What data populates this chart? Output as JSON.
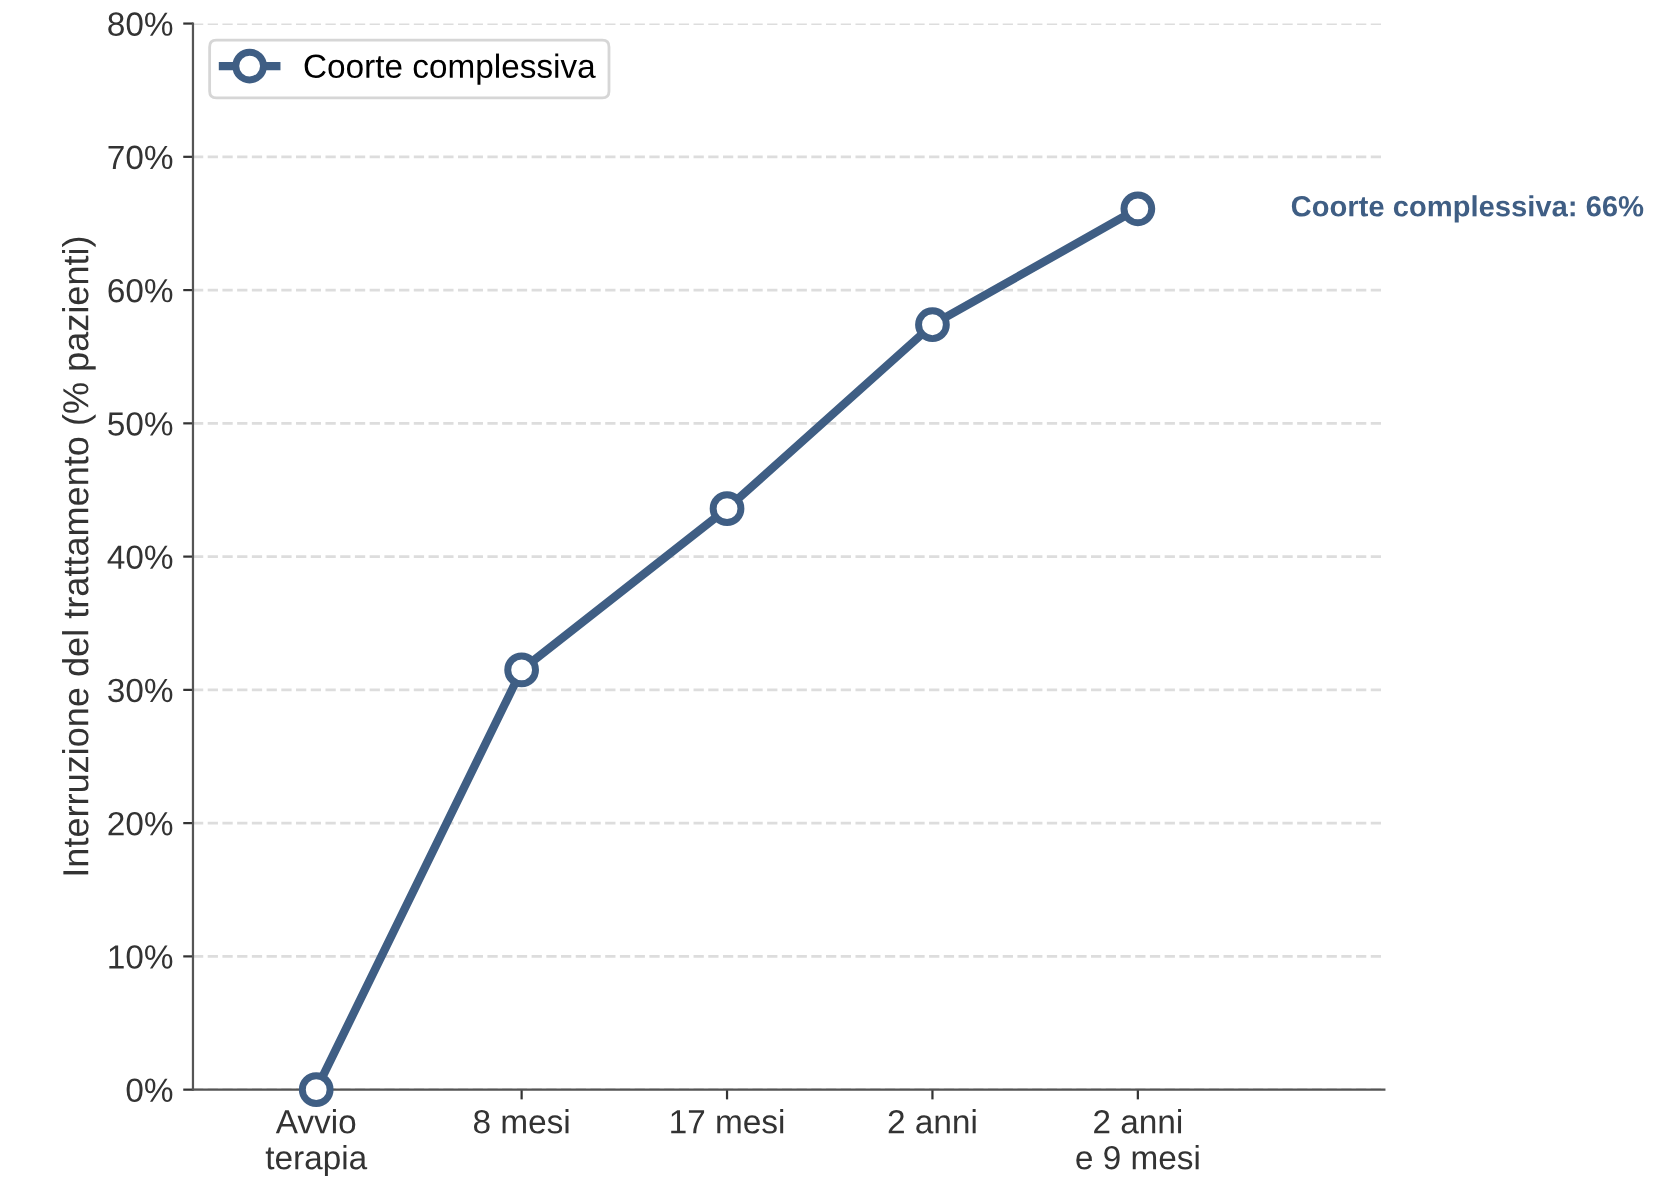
{
  "chart_data": {
    "type": "line",
    "ylabel": "Interruzione del trattamento (% pazienti)",
    "categories": [
      "Avvio\nterapia",
      "8 mesi",
      "17 mesi",
      "2 anni",
      "2 anni\ne 9 mesi"
    ],
    "series": [
      {
        "name": "Coorte complessiva",
        "color": "#3f5e84",
        "values": [
          0,
          31.5,
          43.6,
          57.4,
          66.1
        ]
      }
    ],
    "ylim": [
      0,
      80
    ],
    "yticks": [
      {
        "value": 0,
        "label": "0%"
      },
      {
        "value": 10,
        "label": "10%"
      },
      {
        "value": 20,
        "label": "20%"
      },
      {
        "value": 30,
        "label": "30%"
      },
      {
        "value": 40,
        "label": "40%"
      },
      {
        "value": 50,
        "label": "50%"
      },
      {
        "value": 60,
        "label": "60%"
      },
      {
        "value": 70,
        "label": "70%"
      },
      {
        "value": 80,
        "label": "80%"
      }
    ],
    "annotations": [
      "Coorte complessiva: 66%"
    ],
    "grid": "y",
    "legend": "top left",
    "marker": "circle",
    "line_style": "solid"
  }
}
